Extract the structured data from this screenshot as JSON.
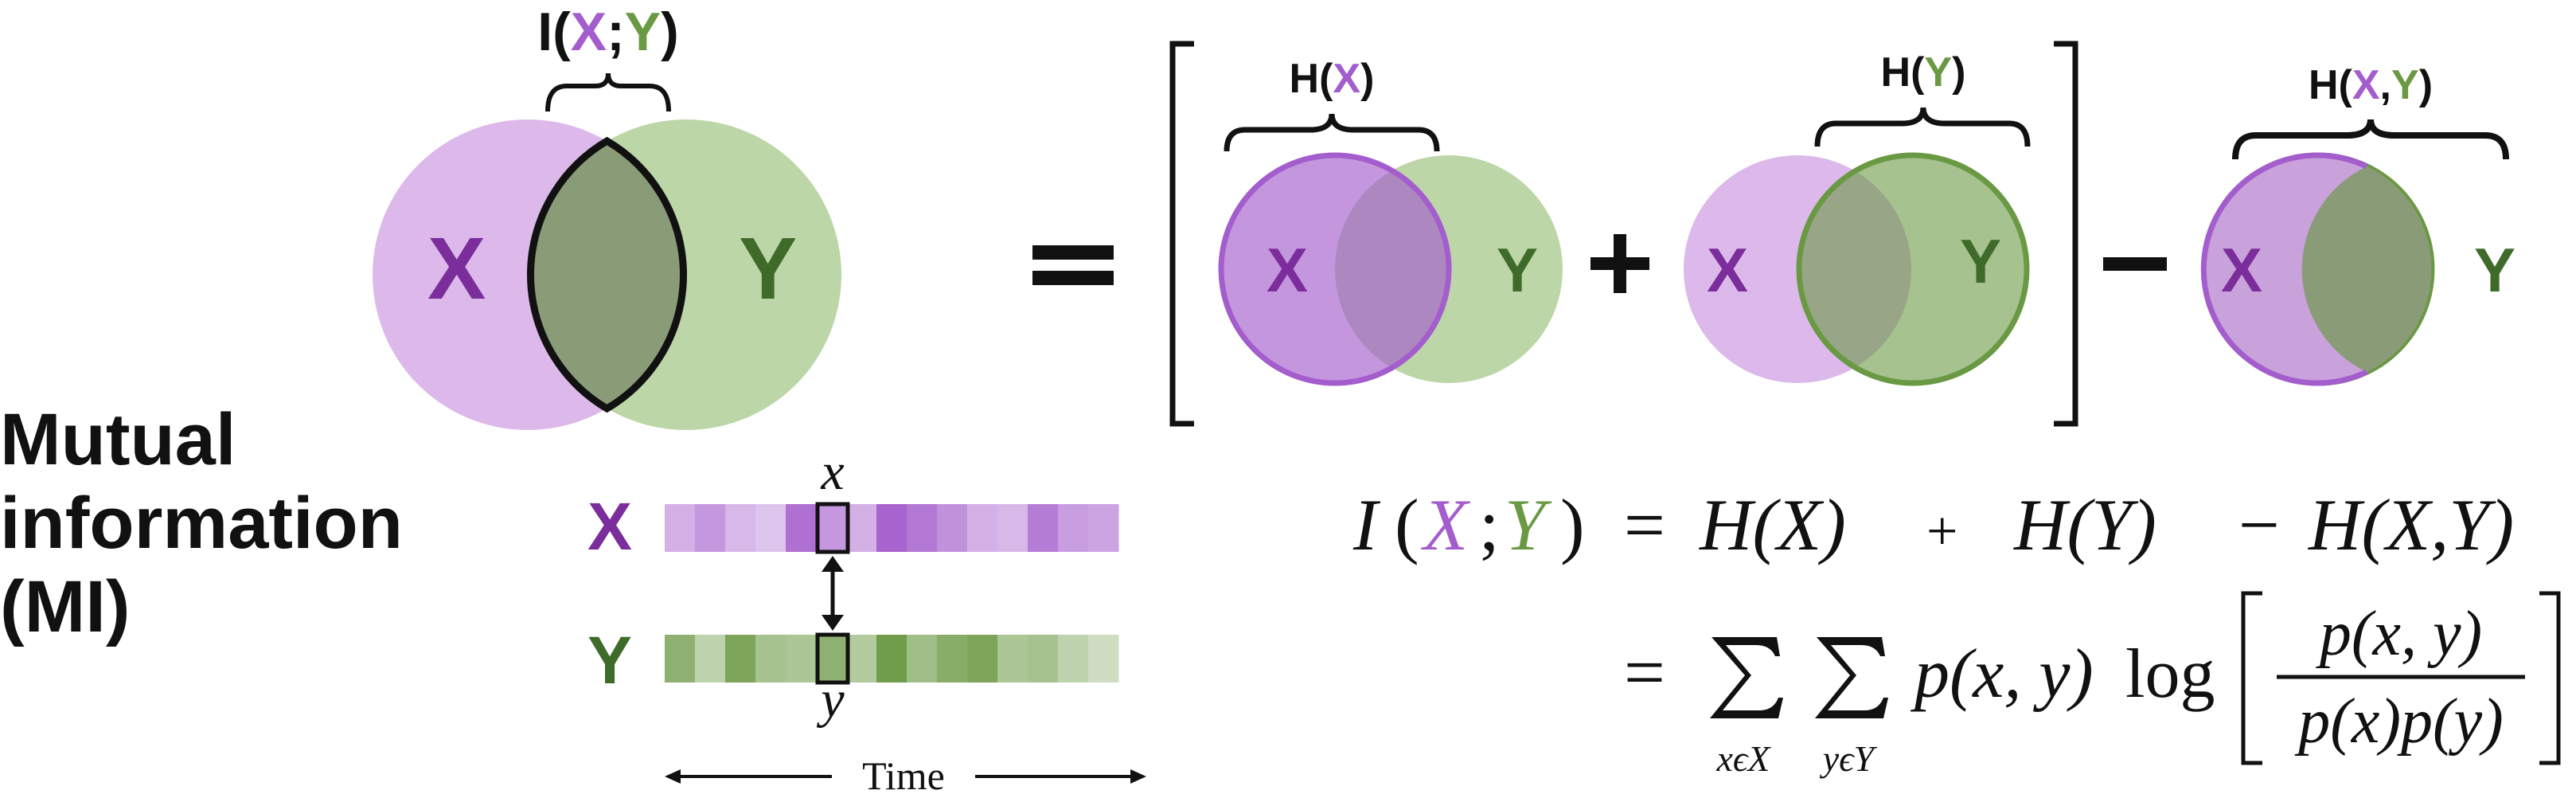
{
  "colors": {
    "x_light": "#dcb9ea",
    "x_strong": "#a45dcc",
    "x_text": "#7a2d9b",
    "y_light": "#bcd6a8",
    "y_strong": "#6a9944",
    "y_text": "#3f6b2a",
    "overlap": "#8a9b78",
    "black": "#111111"
  },
  "title": {
    "line1": "Mutual",
    "line2": "information",
    "line3": "(MI)"
  },
  "venn_main": {
    "brace_label": {
      "open": "I(",
      "x": "X",
      "sep": ";",
      "y": "Y",
      "close": ")"
    },
    "x_label": "X",
    "y_label": "Y"
  },
  "equals_sign": "=",
  "decomposition": {
    "hx": {
      "open": "H(",
      "var": "X",
      "close": ")"
    },
    "hy": {
      "open": "H(",
      "var": "Y",
      "close": ")"
    },
    "hxy": {
      "open": "H(",
      "var1": "X",
      "comma": ",",
      "var2": "Y",
      "close": ")"
    },
    "plus": "+",
    "minus": "–",
    "venn1": {
      "x": "X",
      "y": "Y"
    },
    "venn2": {
      "x": "X",
      "y": "Y"
    },
    "venn3": {
      "x": "X",
      "y": "Y"
    }
  },
  "time_series": {
    "x_label": "X",
    "y_label": "Y",
    "x_sample": "x",
    "y_sample": "y",
    "time_label": "Time",
    "x_shades": [
      0.35,
      0.55,
      0.3,
      0.2,
      0.85,
      0.55,
      0.35,
      0.95,
      0.8,
      0.6,
      0.35,
      0.3,
      0.75,
      0.5,
      0.45
    ],
    "y_shades": [
      0.7,
      0.3,
      0.85,
      0.5,
      0.45,
      0.7,
      0.4,
      0.95,
      0.55,
      0.75,
      0.85,
      0.45,
      0.5,
      0.3,
      0.15
    ]
  },
  "formula": {
    "line1": {
      "I": "I",
      "lp": "(",
      "X": "X",
      "semi": ";",
      "Y": "Y",
      "rp": ")",
      "eq": "=",
      "HX": "H(X)",
      "plus": "+",
      "HY": "H(Y)",
      "minus": "−",
      "HXY": "H(X,Y)"
    },
    "line2": {
      "eq": "=",
      "sum1_sub": "xϵX",
      "sum2_sub": "yϵY",
      "pxy": "p(x, y)",
      "log": "log",
      "num": "p(x, y)",
      "den": "p(x)p(y)"
    }
  }
}
